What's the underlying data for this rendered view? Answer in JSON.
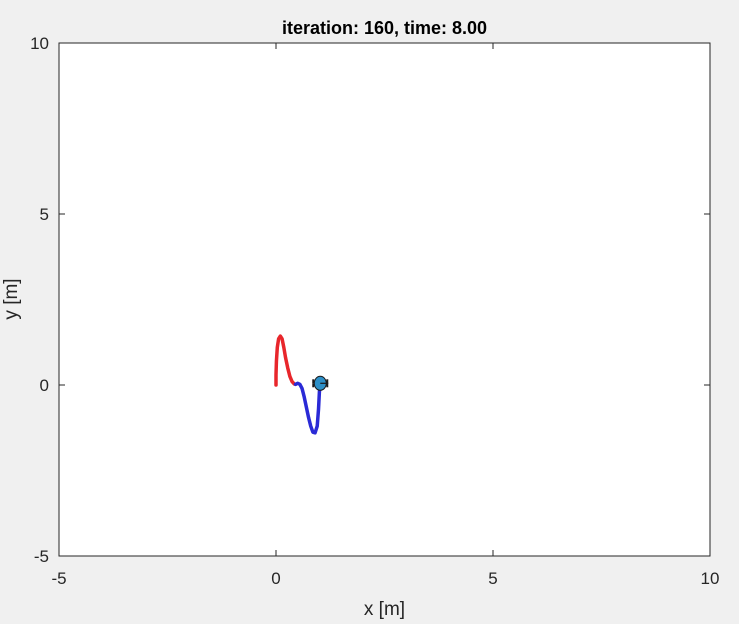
{
  "figure": {
    "background": "#f0f0f0",
    "axes_background": "#ffffff"
  },
  "chart_data": {
    "type": "line",
    "title": "iteration: 160, time: 8.00",
    "xlabel": "x [m]",
    "ylabel": "y [m]",
    "xlim": [
      -5,
      10
    ],
    "ylim": [
      -5,
      10
    ],
    "xticks": [
      -5,
      0,
      5,
      10
    ],
    "yticks": [
      -5,
      0,
      5,
      10
    ],
    "xtick_labels": [
      "-5",
      "0",
      "5",
      "10"
    ],
    "ytick_labels": [
      "-5",
      "0",
      "5",
      "10"
    ],
    "grid": false,
    "series": [
      {
        "color": "#e8262b",
        "x": [
          0.0,
          0.0,
          0.01,
          0.03,
          0.06,
          0.1,
          0.14,
          0.18,
          0.22,
          0.27,
          0.32,
          0.37,
          0.42,
          0.45
        ],
        "y": [
          0.0,
          0.3,
          0.7,
          1.1,
          1.35,
          1.43,
          1.35,
          1.1,
          0.8,
          0.5,
          0.25,
          0.1,
          0.03,
          0.02
        ]
      },
      {
        "color": "#2a2ad6",
        "x": [
          0.45,
          0.5,
          0.55,
          0.6,
          0.65,
          0.7,
          0.75,
          0.8,
          0.85,
          0.9,
          0.95,
          0.98,
          1.0,
          1.02,
          1.05
        ],
        "y": [
          0.02,
          0.05,
          0.02,
          -0.1,
          -0.35,
          -0.65,
          -0.95,
          -1.2,
          -1.38,
          -1.4,
          -1.2,
          -0.7,
          -0.2,
          0.05,
          0.1
        ]
      }
    ],
    "marker": {
      "x": 1.02,
      "y": 0.05,
      "color": "#2d8fc7",
      "edge": "#1a1a1a"
    }
  }
}
